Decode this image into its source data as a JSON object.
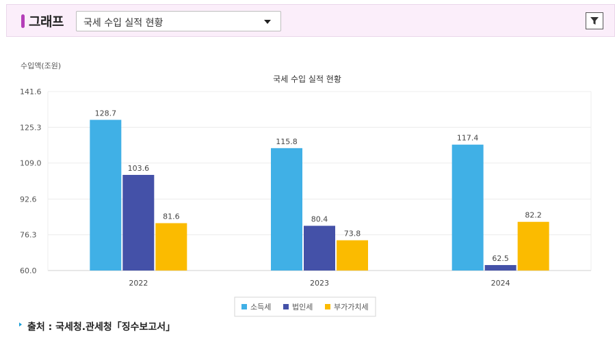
{
  "header": {
    "title": "그래프",
    "select_value": "국세 수입 실적 현황"
  },
  "icons": {
    "filter": "filter-icon",
    "dropdown": "chevron-down-icon"
  },
  "chart_data": {
    "type": "bar",
    "title": "국세 수입 실적 현황",
    "ylabel": "수입액(조원)",
    "xlabel": "",
    "ylim": [
      60.0,
      141.6
    ],
    "yticks": [
      "60.0",
      "76.3",
      "92.6",
      "109.0",
      "125.3",
      "141.6"
    ],
    "categories": [
      "2022",
      "2023",
      "2024"
    ],
    "series": [
      {
        "name": "소득세",
        "color": "#40b0e6",
        "values": [
          128.7,
          115.8,
          117.4
        ]
      },
      {
        "name": "법인세",
        "color": "#4451a8",
        "values": [
          103.6,
          80.4,
          62.5
        ]
      },
      {
        "name": "부가가치세",
        "color": "#fbbb00",
        "values": [
          81.6,
          73.8,
          82.2
        ]
      }
    ],
    "grid": true,
    "legend": "bottom"
  },
  "footer": {
    "source": "출처 : 국세청.관세청「징수보고서」"
  }
}
